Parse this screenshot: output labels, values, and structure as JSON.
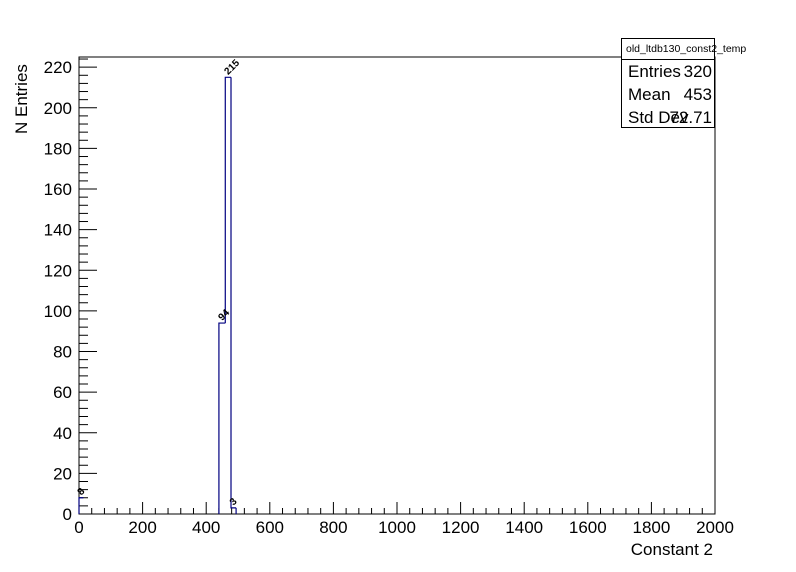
{
  "chart_data": {
    "type": "bar",
    "title": "",
    "xlabel": "Constant 2",
    "ylabel": "N Entries",
    "xlim": [
      0,
      2000
    ],
    "ylim": [
      0,
      225
    ],
    "x_ticks": [
      "0",
      "200",
      "400",
      "600",
      "800",
      "1000",
      "1200",
      "1400",
      "1600",
      "1800",
      "2000"
    ],
    "y_ticks": [
      "0",
      "20",
      "40",
      "60",
      "80",
      "100",
      "120",
      "140",
      "160",
      "180",
      "200",
      "220"
    ],
    "bin_width": 14,
    "bins": [
      {
        "low": 0,
        "high": 14,
        "value": 8,
        "label": "8"
      },
      {
        "low": 440,
        "high": 460,
        "value": 94,
        "label": "94"
      },
      {
        "low": 460,
        "high": 478,
        "value": 215,
        "label": "215"
      },
      {
        "low": 478,
        "high": 494,
        "value": 3,
        "label": "3"
      }
    ],
    "grid": false,
    "legend": "none",
    "line_color": "#000080"
  },
  "stats": {
    "name": "old_ltdb130_const2_temp",
    "entries_label": "Entries",
    "entries_value": "320",
    "mean_label": "Mean",
    "mean_value": "453",
    "stddev_label": "Std Dev",
    "stddev_value": "72.71"
  }
}
